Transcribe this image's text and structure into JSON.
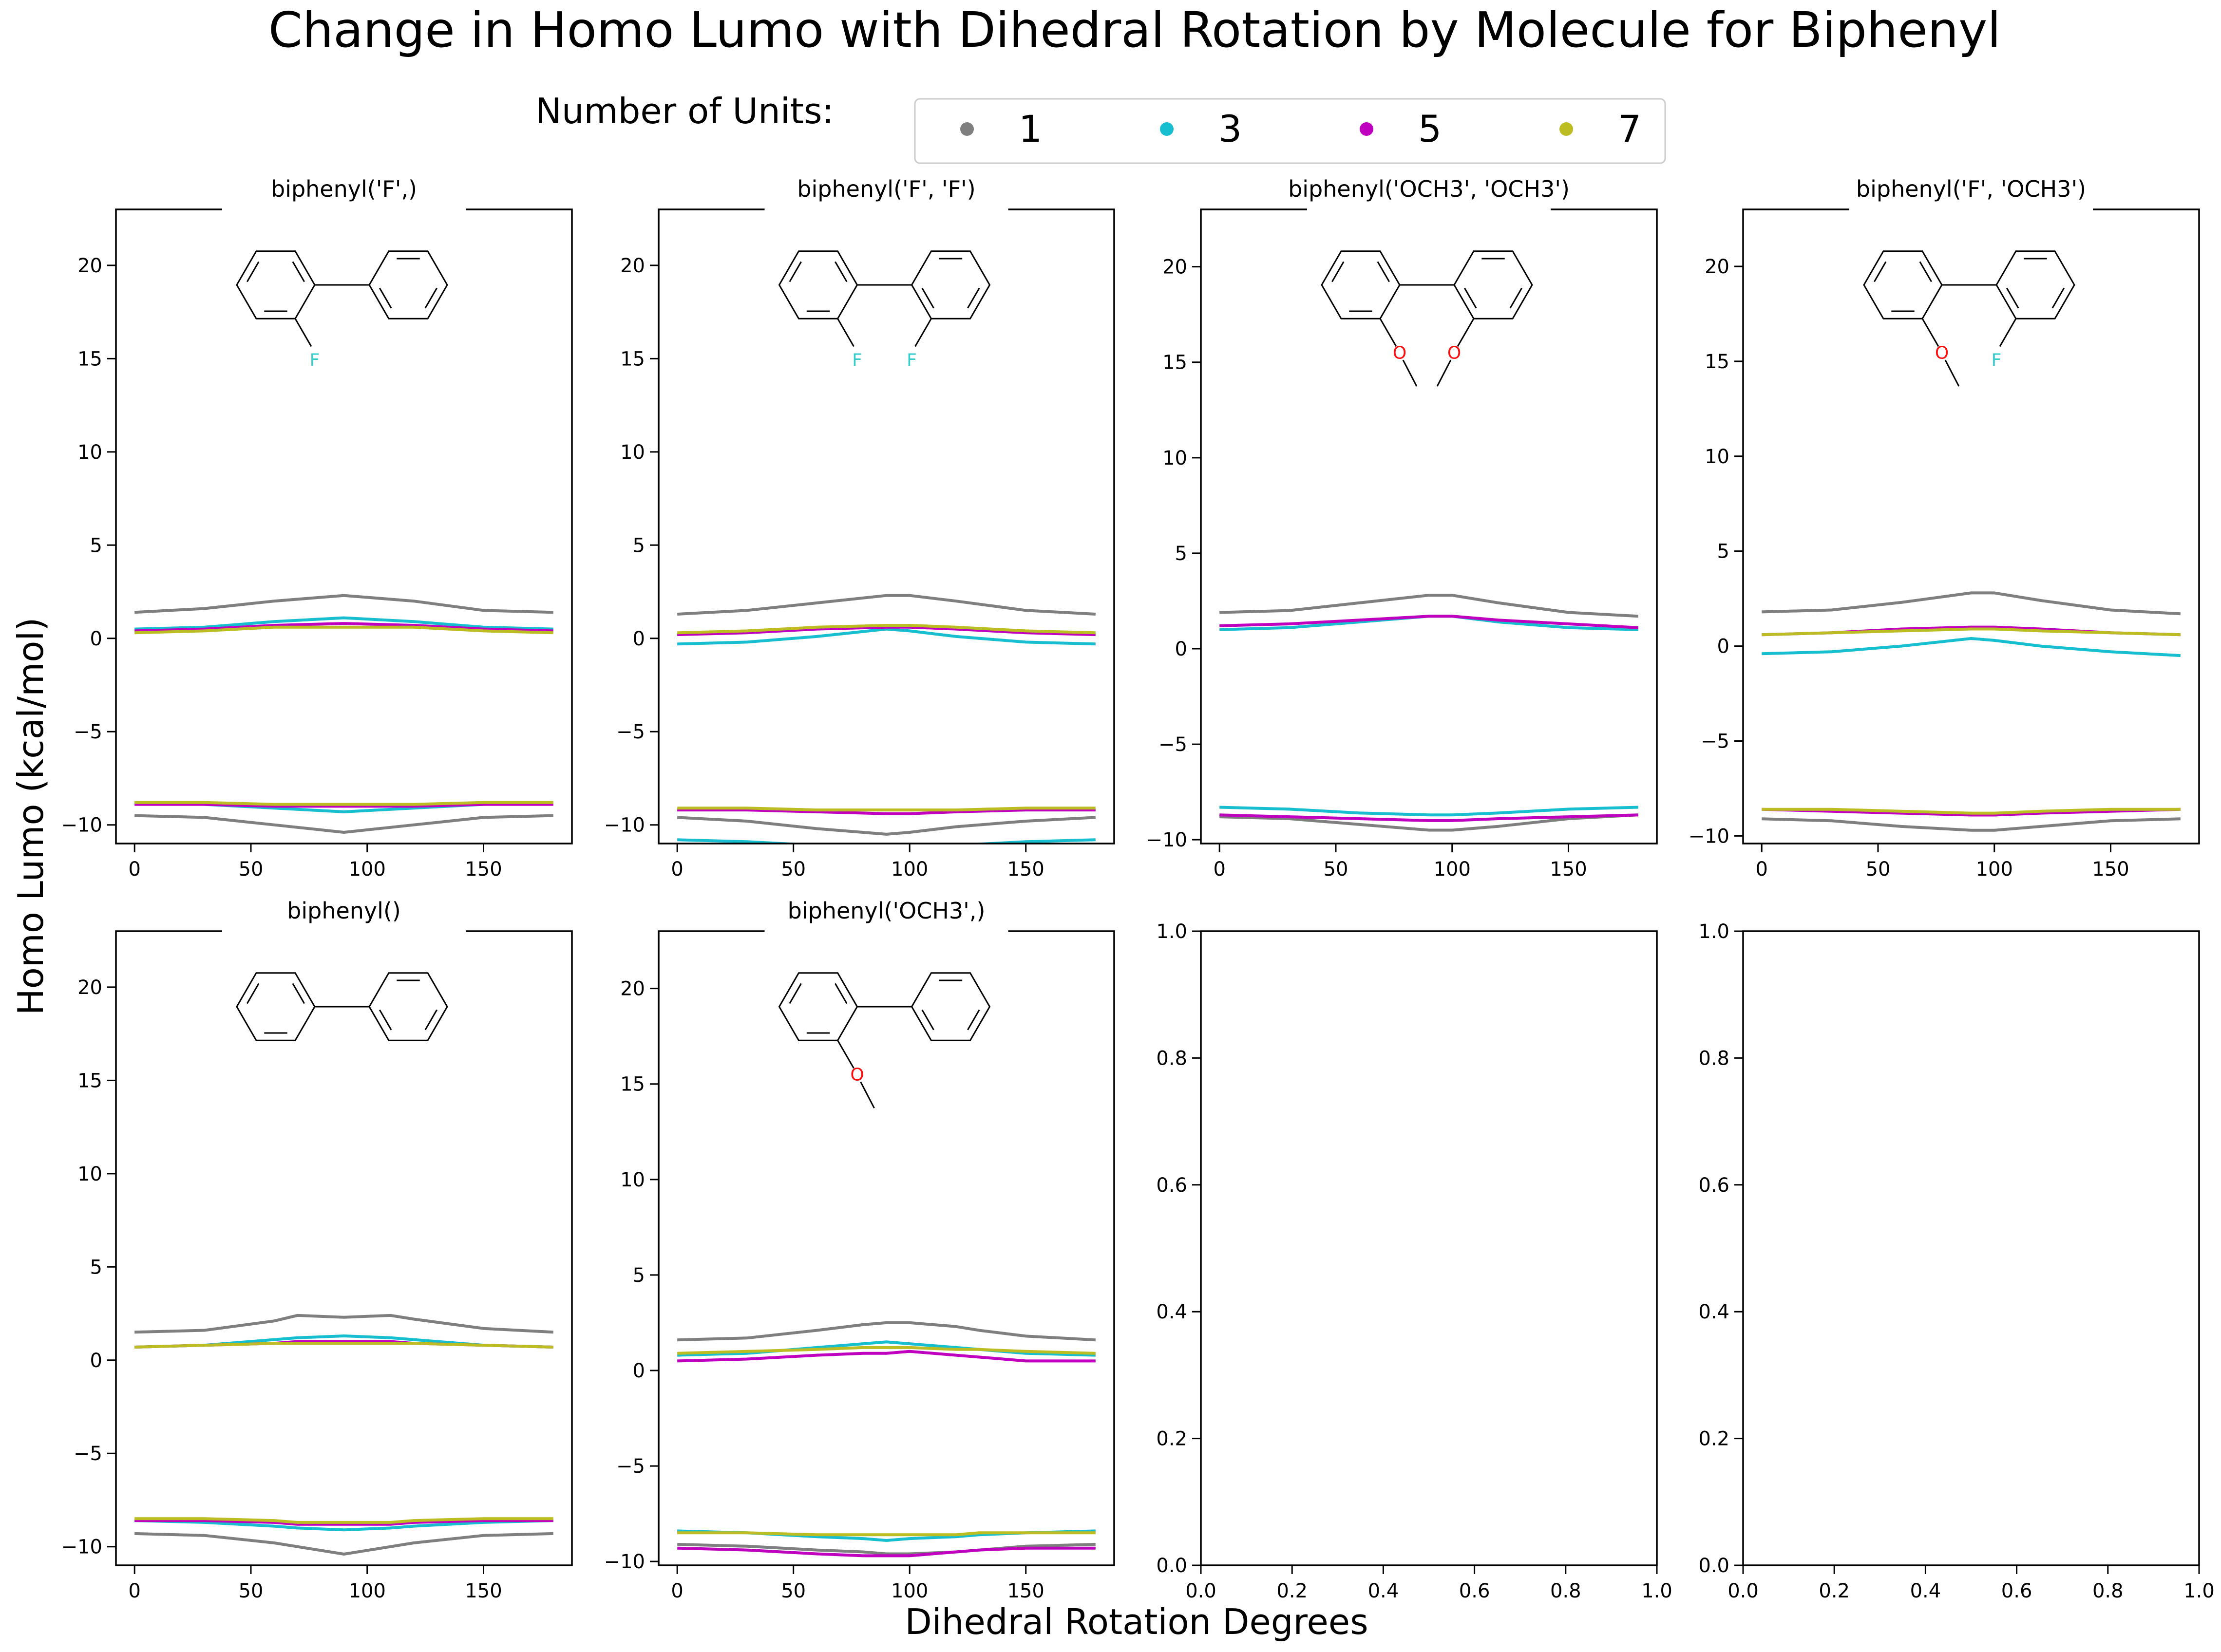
{
  "figure": {
    "title": "Change in Homo Lumo with Dihedral Rotation by Molecule for Biphenyl",
    "xlabel": "Dihedral Rotation Degrees",
    "ylabel": "Homo Lumo (kcal/mol)"
  },
  "legend": {
    "title": "Number of Units:",
    "entries": [
      {
        "label": "1",
        "color": "#7f7f7f"
      },
      {
        "label": "3",
        "color": "#17becf"
      },
      {
        "label": "5",
        "color": "#bf00bf"
      },
      {
        "label": "7",
        "color": "#bcbd22"
      }
    ]
  },
  "chart_data": [
    {
      "type": "line",
      "title": "biphenyl('F',)",
      "molecule": {
        "left_sub": "F",
        "right_sub": null
      },
      "xlim": [
        -8,
        188
      ],
      "ylim": [
        -11,
        23
      ],
      "xticks": [
        0,
        50,
        100,
        150
      ],
      "yticks": [
        -10,
        -5,
        0,
        5,
        10,
        15,
        20
      ],
      "x": [
        0,
        30,
        60,
        90,
        120,
        150,
        180
      ],
      "series": [
        {
          "name": "1",
          "color": "#7f7f7f",
          "values": [
            1.4,
            1.6,
            2.0,
            2.3,
            2.0,
            1.5,
            1.4
          ]
        },
        {
          "name": "1",
          "color": "#7f7f7f",
          "values": [
            -9.5,
            -9.6,
            -10.0,
            -10.4,
            -10.0,
            -9.6,
            -9.5
          ]
        },
        {
          "name": "3",
          "color": "#17becf",
          "values": [
            0.5,
            0.6,
            0.9,
            1.1,
            0.9,
            0.6,
            0.5
          ]
        },
        {
          "name": "3",
          "color": "#17becf",
          "values": [
            -8.8,
            -8.9,
            -9.1,
            -9.3,
            -9.1,
            -8.9,
            -8.8
          ]
        },
        {
          "name": "5",
          "color": "#bf00bf",
          "values": [
            0.4,
            0.5,
            0.7,
            0.8,
            0.7,
            0.5,
            0.4
          ]
        },
        {
          "name": "5",
          "color": "#bf00bf",
          "values": [
            -8.9,
            -8.9,
            -9.0,
            -9.0,
            -9.0,
            -8.9,
            -8.9
          ]
        },
        {
          "name": "7",
          "color": "#bcbd22",
          "values": [
            0.3,
            0.4,
            0.6,
            0.6,
            0.6,
            0.4,
            0.3
          ]
        },
        {
          "name": "7",
          "color": "#bcbd22",
          "values": [
            -8.8,
            -8.8,
            -8.9,
            -8.9,
            -8.9,
            -8.8,
            -8.8
          ]
        }
      ]
    },
    {
      "type": "line",
      "title": "biphenyl('F', 'F')",
      "molecule": {
        "left_sub": "F",
        "right_sub": "F"
      },
      "xlim": [
        -8,
        188
      ],
      "ylim": [
        -11,
        23
      ],
      "xticks": [
        0,
        50,
        100,
        150
      ],
      "yticks": [
        -10,
        -5,
        0,
        5,
        10,
        15,
        20
      ],
      "x": [
        0,
        30,
        60,
        90,
        100,
        120,
        150,
        180
      ],
      "series": [
        {
          "name": "1",
          "color": "#7f7f7f",
          "values": [
            1.3,
            1.5,
            1.9,
            2.3,
            2.3,
            2.0,
            1.5,
            1.3
          ]
        },
        {
          "name": "1",
          "color": "#7f7f7f",
          "values": [
            -9.6,
            -9.8,
            -10.2,
            -10.5,
            -10.4,
            -10.1,
            -9.8,
            -9.6
          ]
        },
        {
          "name": "3",
          "color": "#17becf",
          "values": [
            -0.3,
            -0.2,
            0.1,
            0.5,
            0.4,
            0.1,
            -0.2,
            -0.3
          ]
        },
        {
          "name": "3",
          "color": "#17becf",
          "values": [
            -10.8,
            -10.9,
            -11.1,
            -11.3,
            -11.3,
            -11.1,
            -10.9,
            -10.8
          ]
        },
        {
          "name": "5",
          "color": "#bf00bf",
          "values": [
            0.2,
            0.3,
            0.5,
            0.6,
            0.6,
            0.5,
            0.3,
            0.2
          ]
        },
        {
          "name": "5",
          "color": "#bf00bf",
          "values": [
            -9.2,
            -9.2,
            -9.3,
            -9.4,
            -9.4,
            -9.3,
            -9.2,
            -9.2
          ]
        },
        {
          "name": "7",
          "color": "#bcbd22",
          "values": [
            0.3,
            0.4,
            0.6,
            0.7,
            0.7,
            0.6,
            0.4,
            0.3
          ]
        },
        {
          "name": "7",
          "color": "#bcbd22",
          "values": [
            -9.1,
            -9.1,
            -9.2,
            -9.2,
            -9.2,
            -9.2,
            -9.1,
            -9.1
          ]
        }
      ]
    },
    {
      "type": "line",
      "title": "biphenyl('OCH3', 'OCH3')",
      "molecule": {
        "left_sub": "OCH3",
        "right_sub": "OCH3"
      },
      "xlim": [
        -8,
        188
      ],
      "ylim": [
        -10.2,
        23
      ],
      "xticks": [
        0,
        50,
        100,
        150
      ],
      "yticks": [
        -10,
        -5,
        0,
        5,
        10,
        15,
        20
      ],
      "x": [
        0,
        30,
        60,
        90,
        100,
        120,
        150,
        180
      ],
      "series": [
        {
          "name": "1",
          "color": "#7f7f7f",
          "values": [
            1.9,
            2.0,
            2.4,
            2.8,
            2.8,
            2.4,
            1.9,
            1.7
          ]
        },
        {
          "name": "1",
          "color": "#7f7f7f",
          "values": [
            -8.8,
            -8.9,
            -9.2,
            -9.5,
            -9.5,
            -9.3,
            -8.9,
            -8.7
          ]
        },
        {
          "name": "3",
          "color": "#17becf",
          "values": [
            1.0,
            1.1,
            1.4,
            1.7,
            1.7,
            1.4,
            1.1,
            1.0
          ]
        },
        {
          "name": "3",
          "color": "#17becf",
          "values": [
            -8.3,
            -8.4,
            -8.6,
            -8.7,
            -8.7,
            -8.6,
            -8.4,
            -8.3
          ]
        },
        {
          "name": "5",
          "color": "#bf00bf",
          "values": [
            1.2,
            1.3,
            1.5,
            1.7,
            1.7,
            1.5,
            1.3,
            1.1
          ]
        },
        {
          "name": "5",
          "color": "#bf00bf",
          "values": [
            -8.7,
            -8.8,
            -8.9,
            -9.0,
            -9.0,
            -8.9,
            -8.8,
            -8.7
          ]
        }
      ]
    },
    {
      "type": "line",
      "title": "biphenyl('F', 'OCH3')",
      "molecule": {
        "left_sub": "OCH3",
        "right_sub": "F"
      },
      "xlim": [
        -8,
        188
      ],
      "ylim": [
        -10.4,
        23
      ],
      "xticks": [
        0,
        50,
        100,
        150
      ],
      "yticks": [
        -10,
        -5,
        0,
        5,
        10,
        15,
        20
      ],
      "x": [
        0,
        30,
        60,
        90,
        100,
        120,
        150,
        180
      ],
      "series": [
        {
          "name": "1",
          "color": "#7f7f7f",
          "values": [
            1.8,
            1.9,
            2.3,
            2.8,
            2.8,
            2.4,
            1.9,
            1.7
          ]
        },
        {
          "name": "1",
          "color": "#7f7f7f",
          "values": [
            -9.1,
            -9.2,
            -9.5,
            -9.7,
            -9.7,
            -9.5,
            -9.2,
            -9.1
          ]
        },
        {
          "name": "3",
          "color": "#17becf",
          "values": [
            -0.4,
            -0.3,
            0.0,
            0.4,
            0.3,
            0.0,
            -0.3,
            -0.5
          ]
        },
        {
          "name": "5",
          "color": "#bf00bf",
          "values": [
            0.6,
            0.7,
            0.9,
            1.0,
            1.0,
            0.9,
            0.7,
            0.6
          ]
        },
        {
          "name": "5",
          "color": "#bf00bf",
          "values": [
            -8.6,
            -8.7,
            -8.8,
            -8.9,
            -8.9,
            -8.8,
            -8.7,
            -8.6
          ]
        },
        {
          "name": "7",
          "color": "#bcbd22",
          "values": [
            0.6,
            0.7,
            0.8,
            0.9,
            0.9,
            0.8,
            0.7,
            0.6
          ]
        },
        {
          "name": "7",
          "color": "#bcbd22",
          "values": [
            -8.6,
            -8.6,
            -8.7,
            -8.8,
            -8.8,
            -8.7,
            -8.6,
            -8.6
          ]
        }
      ]
    },
    {
      "type": "line",
      "title": "biphenyl()",
      "molecule": {
        "left_sub": null,
        "right_sub": null
      },
      "xlim": [
        -8,
        188
      ],
      "ylim": [
        -11,
        23
      ],
      "xticks": [
        0,
        50,
        100,
        150
      ],
      "yticks": [
        -10,
        -5,
        0,
        5,
        10,
        15,
        20
      ],
      "x": [
        0,
        30,
        60,
        70,
        90,
        110,
        120,
        150,
        180
      ],
      "series": [
        {
          "name": "1",
          "color": "#7f7f7f",
          "values": [
            1.5,
            1.6,
            2.1,
            2.4,
            2.3,
            2.4,
            2.2,
            1.7,
            1.5
          ]
        },
        {
          "name": "1",
          "color": "#7f7f7f",
          "values": [
            -9.3,
            -9.4,
            -9.8,
            -10.0,
            -10.4,
            -10.0,
            -9.8,
            -9.4,
            -9.3
          ]
        },
        {
          "name": "3",
          "color": "#17becf",
          "values": [
            0.7,
            0.8,
            1.1,
            1.2,
            1.3,
            1.2,
            1.1,
            0.8,
            0.7
          ]
        },
        {
          "name": "3",
          "color": "#17becf",
          "values": [
            -8.6,
            -8.7,
            -8.9,
            -9.0,
            -9.1,
            -9.0,
            -8.9,
            -8.7,
            -8.6
          ]
        },
        {
          "name": "5",
          "color": "#bf00bf",
          "values": [
            0.7,
            0.8,
            0.9,
            1.0,
            1.0,
            1.0,
            0.9,
            0.8,
            0.7
          ]
        },
        {
          "name": "5",
          "color": "#bf00bf",
          "values": [
            -8.6,
            -8.6,
            -8.7,
            -8.8,
            -8.8,
            -8.8,
            -8.7,
            -8.6,
            -8.6
          ]
        },
        {
          "name": "7",
          "color": "#bcbd22",
          "values": [
            0.7,
            0.8,
            0.9,
            0.9,
            0.9,
            0.9,
            0.9,
            0.8,
            0.7
          ]
        },
        {
          "name": "7",
          "color": "#bcbd22",
          "values": [
            -8.5,
            -8.5,
            -8.6,
            -8.7,
            -8.7,
            -8.7,
            -8.6,
            -8.5,
            -8.5
          ]
        }
      ]
    },
    {
      "type": "line",
      "title": "biphenyl('OCH3',)",
      "molecule": {
        "left_sub": "OCH3",
        "right_sub": null
      },
      "xlim": [
        -8,
        188
      ],
      "ylim": [
        -10.2,
        23
      ],
      "xticks": [
        0,
        50,
        100,
        150
      ],
      "yticks": [
        -10,
        -5,
        0,
        5,
        10,
        15,
        20
      ],
      "x": [
        0,
        30,
        60,
        80,
        90,
        100,
        120,
        130,
        150,
        180
      ],
      "series": [
        {
          "name": "1",
          "color": "#7f7f7f",
          "values": [
            1.6,
            1.7,
            2.1,
            2.4,
            2.5,
            2.5,
            2.3,
            2.1,
            1.8,
            1.6
          ]
        },
        {
          "name": "1",
          "color": "#7f7f7f",
          "values": [
            -9.1,
            -9.2,
            -9.4,
            -9.5,
            -9.6,
            -9.6,
            -9.5,
            -9.4,
            -9.2,
            -9.1
          ]
        },
        {
          "name": "3",
          "color": "#17becf",
          "values": [
            0.8,
            0.9,
            1.2,
            1.4,
            1.5,
            1.4,
            1.2,
            1.1,
            0.9,
            0.8
          ]
        },
        {
          "name": "3",
          "color": "#17becf",
          "values": [
            -8.4,
            -8.5,
            -8.7,
            -8.8,
            -8.9,
            -8.8,
            -8.7,
            -8.6,
            -8.5,
            -8.4
          ]
        },
        {
          "name": "5",
          "color": "#bf00bf",
          "values": [
            0.5,
            0.6,
            0.8,
            0.9,
            0.9,
            1.0,
            0.8,
            0.7,
            0.5,
            0.5
          ]
        },
        {
          "name": "5",
          "color": "#bf00bf",
          "values": [
            -9.3,
            -9.4,
            -9.6,
            -9.7,
            -9.7,
            -9.7,
            -9.5,
            -9.4,
            -9.3,
            -9.3
          ]
        },
        {
          "name": "7",
          "color": "#bcbd22",
          "values": [
            0.9,
            1.0,
            1.1,
            1.2,
            1.2,
            1.2,
            1.1,
            1.1,
            1.0,
            0.9
          ]
        },
        {
          "name": "7",
          "color": "#bcbd22",
          "values": [
            -8.5,
            -8.5,
            -8.6,
            -8.6,
            -8.6,
            -8.6,
            -8.6,
            -8.5,
            -8.5,
            -8.5
          ]
        }
      ]
    },
    {
      "type": "line",
      "title": "",
      "molecule": null,
      "xlim": [
        0,
        1
      ],
      "ylim": [
        0,
        1
      ],
      "xticks": [
        0.0,
        0.2,
        0.4,
        0.6,
        0.8,
        1.0
      ],
      "yticks": [
        0.0,
        0.2,
        0.4,
        0.6,
        0.8,
        1.0
      ],
      "x": [],
      "series": []
    },
    {
      "type": "line",
      "title": "",
      "molecule": null,
      "xlim": [
        0,
        1
      ],
      "ylim": [
        0,
        1
      ],
      "xticks": [
        0.0,
        0.2,
        0.4,
        0.6,
        0.8,
        1.0
      ],
      "yticks": [
        0.0,
        0.2,
        0.4,
        0.6,
        0.8,
        1.0
      ],
      "x": [],
      "series": []
    }
  ]
}
